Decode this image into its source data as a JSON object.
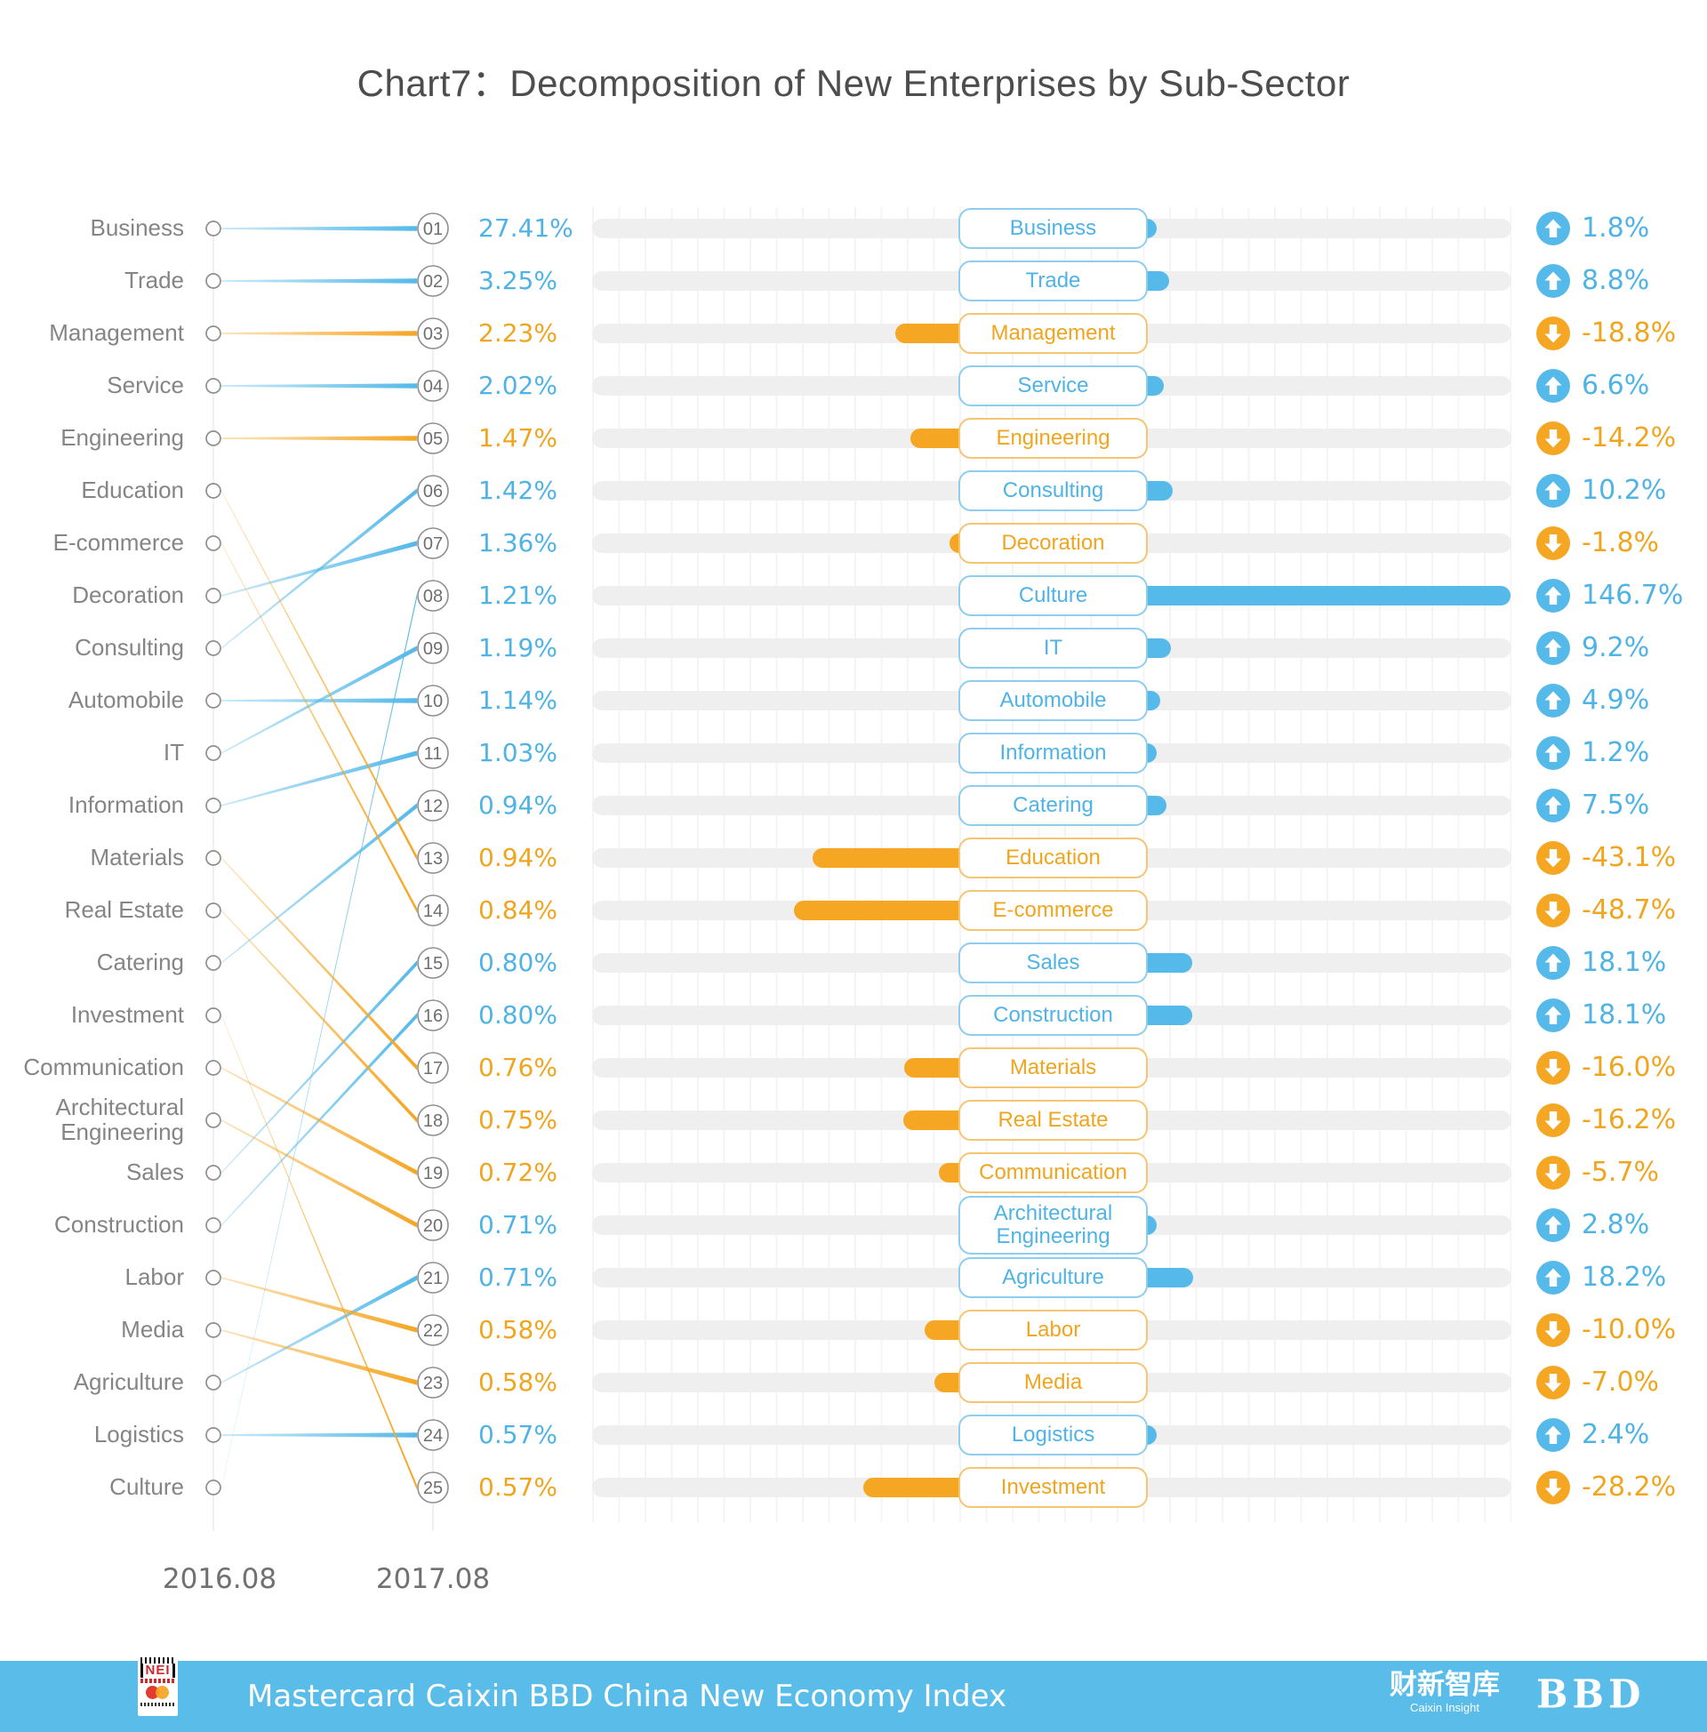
{
  "title": "Chart7：Decomposition of New Enterprises by Sub-Sector",
  "axis": {
    "left_year": "2016.08",
    "right_year": "2017.08"
  },
  "colors": {
    "up": "#55B9E9",
    "down": "#F5A623",
    "up_text": "#4FB3E6",
    "down_text": "#F0A51F",
    "up_border": "#8ECDEE",
    "down_border": "#F5C573",
    "track": "#EFEFEF",
    "grid": "#F4F4F4",
    "sector_label": "#858585",
    "rank_number": "#6E6E6E",
    "circle_stroke": "#8F8F8F",
    "axis_line": "#ECECEC",
    "title_text": "#4D4D4D",
    "axis_label": "#707070",
    "footer_bg": "#5ABCE9",
    "footer_text": "#FFFFFF"
  },
  "chart_data": {
    "type": "slope+bar",
    "title": "Chart7：Decomposition of New Enterprises by Sub-Sector",
    "left_axis_label": "2016.08",
    "right_axis_label": "2017.08",
    "description": "Left: sector ranking by share of new enterprises, 2016.08 vs 2017.08, with 2017.08 share. Right: year-over-year change in new enterprises per sub-sector.",
    "sectors": [
      {
        "rank": "01",
        "name": "Business",
        "rank_2016": 1,
        "share": "27.41%",
        "share_dir": "up",
        "change": "1.8%",
        "dir": "up",
        "line_dir": "up"
      },
      {
        "rank": "02",
        "name": "Trade",
        "rank_2016": 2,
        "share": "3.25%",
        "share_dir": "up",
        "change": "8.8%",
        "dir": "up",
        "line_dir": "up"
      },
      {
        "rank": "03",
        "name": "Management",
        "rank_2016": 3,
        "share": "2.23%",
        "share_dir": "down",
        "change": "-18.8%",
        "dir": "down",
        "line_dir": "down"
      },
      {
        "rank": "04",
        "name": "Service",
        "rank_2016": 4,
        "share": "2.02%",
        "share_dir": "up",
        "change": "6.6%",
        "dir": "up",
        "line_dir": "up"
      },
      {
        "rank": "05",
        "name": "Engineering",
        "rank_2016": 5,
        "share": "1.47%",
        "share_dir": "down",
        "change": "-14.2%",
        "dir": "down",
        "line_dir": "down"
      },
      {
        "rank": "06",
        "name": "Consulting",
        "rank_2016": 9,
        "share": "1.42%",
        "share_dir": "up",
        "change": "10.2%",
        "dir": "up",
        "line_dir": "up"
      },
      {
        "rank": "07",
        "name": "Decoration",
        "rank_2016": 8,
        "share": "1.36%",
        "share_dir": "up",
        "change": "-1.8%",
        "dir": "down",
        "line_dir": "up"
      },
      {
        "rank": "08",
        "name": "Culture",
        "rank_2016": 25,
        "share": "1.21%",
        "share_dir": "up",
        "change": "146.7%",
        "dir": "up",
        "line_dir": "up"
      },
      {
        "rank": "09",
        "name": "IT",
        "rank_2016": 11,
        "share": "1.19%",
        "share_dir": "up",
        "change": "9.2%",
        "dir": "up",
        "line_dir": "up"
      },
      {
        "rank": "10",
        "name": "Automobile",
        "rank_2016": 10,
        "share": "1.14%",
        "share_dir": "up",
        "change": "4.9%",
        "dir": "up",
        "line_dir": "up"
      },
      {
        "rank": "11",
        "name": "Information",
        "rank_2016": 12,
        "share": "1.03%",
        "share_dir": "up",
        "change": "1.2%",
        "dir": "up",
        "line_dir": "up"
      },
      {
        "rank": "12",
        "name": "Catering",
        "rank_2016": 15,
        "share": "0.94%",
        "share_dir": "up",
        "change": "7.5%",
        "dir": "up",
        "line_dir": "up"
      },
      {
        "rank": "13",
        "name": "Education",
        "rank_2016": 6,
        "share": "0.94%",
        "share_dir": "down",
        "change": "-43.1%",
        "dir": "down",
        "line_dir": "down"
      },
      {
        "rank": "14",
        "name": "E-commerce",
        "rank_2016": 7,
        "share": "0.84%",
        "share_dir": "down",
        "change": "-48.7%",
        "dir": "down",
        "line_dir": "down"
      },
      {
        "rank": "15",
        "name": "Sales",
        "rank_2016": 19,
        "share": "0.80%",
        "share_dir": "up",
        "change": "18.1%",
        "dir": "up",
        "line_dir": "up"
      },
      {
        "rank": "16",
        "name": "Construction",
        "rank_2016": 20,
        "share": "0.80%",
        "share_dir": "up",
        "change": "18.1%",
        "dir": "up",
        "line_dir": "up"
      },
      {
        "rank": "17",
        "name": "Materials",
        "rank_2016": 13,
        "share": "0.76%",
        "share_dir": "down",
        "change": "-16.0%",
        "dir": "down",
        "line_dir": "down"
      },
      {
        "rank": "18",
        "name": "Real Estate",
        "rank_2016": 14,
        "share": "0.75%",
        "share_dir": "down",
        "change": "-16.2%",
        "dir": "down",
        "line_dir": "down"
      },
      {
        "rank": "19",
        "name": "Communication",
        "rank_2016": 17,
        "share": "0.72%",
        "share_dir": "down",
        "change": "-5.7%",
        "dir": "down",
        "line_dir": "down"
      },
      {
        "rank": "20",
        "name": "Architectural\nEngineering",
        "rank_2016": 18,
        "share": "0.71%",
        "share_dir": "up",
        "change": "2.8%",
        "dir": "up",
        "line_dir": "down"
      },
      {
        "rank": "21",
        "name": "Agriculture",
        "rank_2016": 23,
        "share": "0.71%",
        "share_dir": "up",
        "change": "18.2%",
        "dir": "up",
        "line_dir": "up"
      },
      {
        "rank": "22",
        "name": "Labor",
        "rank_2016": 21,
        "share": "0.58%",
        "share_dir": "down",
        "change": "-10.0%",
        "dir": "down",
        "line_dir": "down"
      },
      {
        "rank": "23",
        "name": "Media",
        "rank_2016": 22,
        "share": "0.58%",
        "share_dir": "down",
        "change": "-7.0%",
        "dir": "down",
        "line_dir": "down"
      },
      {
        "rank": "24",
        "name": "Logistics",
        "rank_2016": 24,
        "share": "0.57%",
        "share_dir": "up",
        "change": "2.4%",
        "dir": "up",
        "line_dir": "up"
      },
      {
        "rank": "25",
        "name": "Investment",
        "rank_2016": 16,
        "share": "0.57%",
        "share_dir": "down",
        "change": "-28.2%",
        "dir": "down",
        "line_dir": "down"
      }
    ]
  },
  "footer": {
    "title": "Mastercard Caixin BBD China New Economy Index",
    "logo_nei": "NEI",
    "logo_caixin": "财新智库",
    "logo_caixin_sub": "Caixin Insight",
    "logo_bbd": "BBD"
  }
}
